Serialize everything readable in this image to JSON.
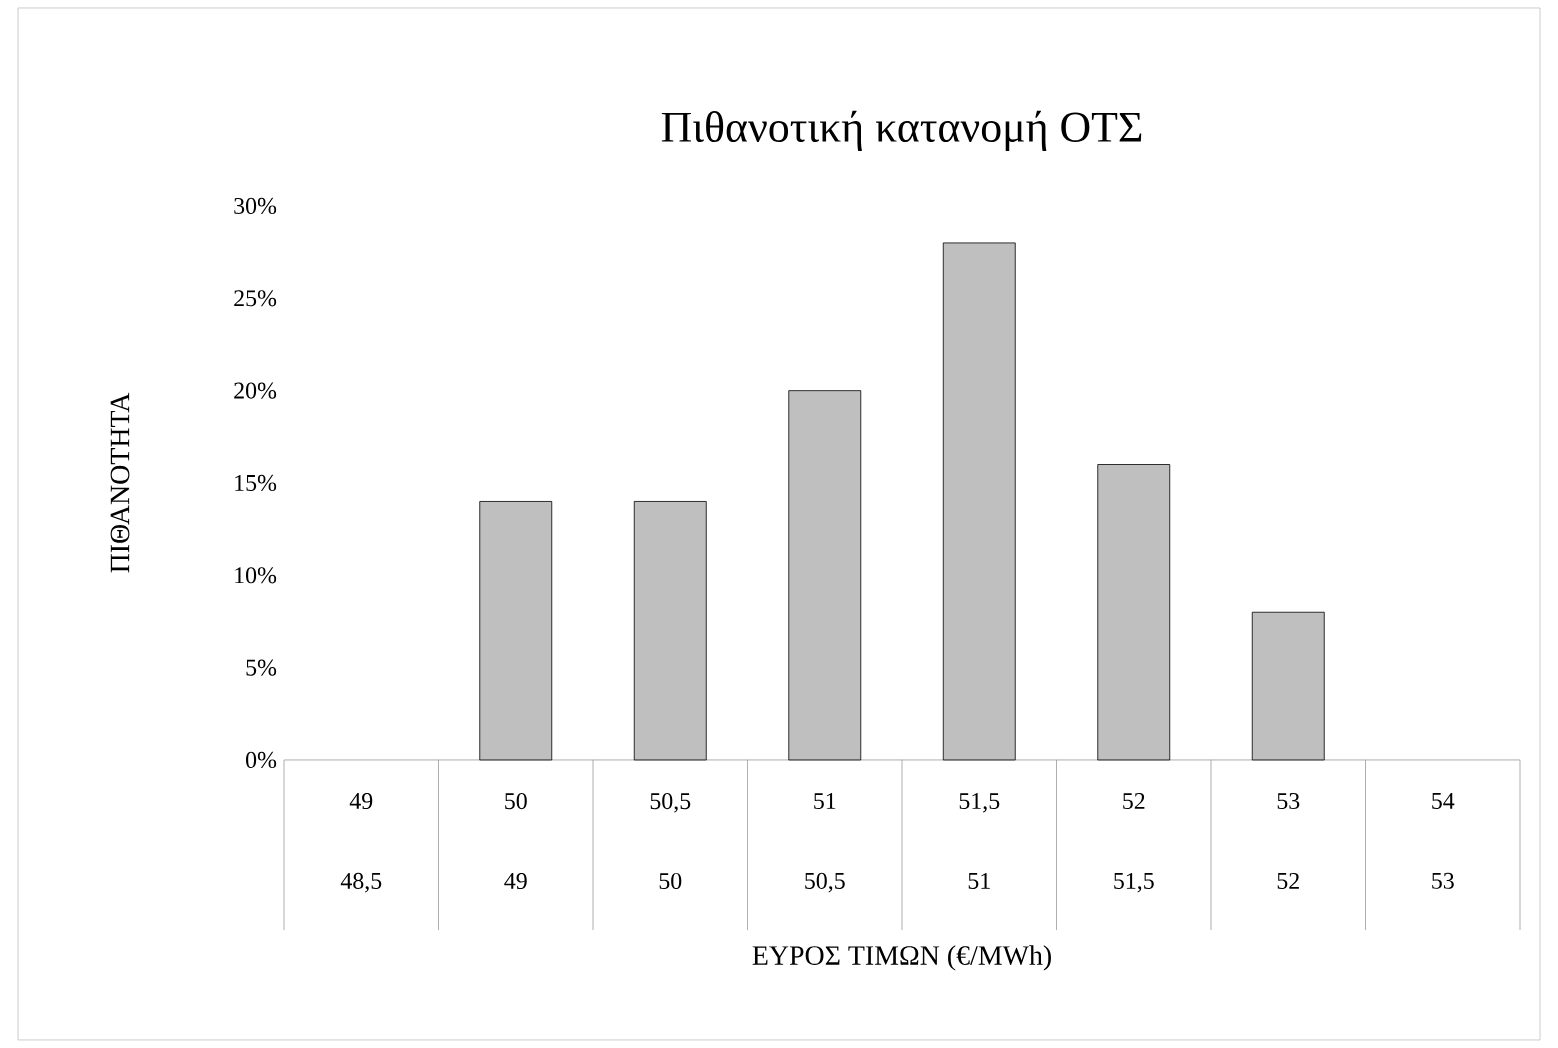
{
  "chart_data": {
    "type": "bar",
    "title": "Πιθανοτική κατανομή ΟΤΣ",
    "xlabel": "ΕΥΡΟΣ ΤΙΜΩΝ (€/MWh)",
    "ylabel": "ΠΙΘΑΝΟΤΗΤΑ",
    "categories": [
      "49",
      "50",
      "50,5",
      "51",
      "51,5",
      "52",
      "53",
      "54"
    ],
    "annotations": [
      "48,5",
      "49",
      "50",
      "50,5",
      "51",
      "51,5",
      "52",
      "53"
    ],
    "values": [
      0,
      14,
      14,
      20,
      28,
      16,
      8,
      0
    ],
    "color": "#bfbfbf",
    "ylim": [
      0,
      30
    ],
    "yticks": [
      {
        "value": 0,
        "label": "0%"
      },
      {
        "value": 5,
        "label": "5%"
      },
      {
        "value": 10,
        "label": "10%"
      },
      {
        "value": 15,
        "label": "15%"
      },
      {
        "value": 20,
        "label": "20%"
      },
      {
        "value": 25,
        "label": "25%"
      },
      {
        "value": 30,
        "label": "30%"
      }
    ]
  }
}
